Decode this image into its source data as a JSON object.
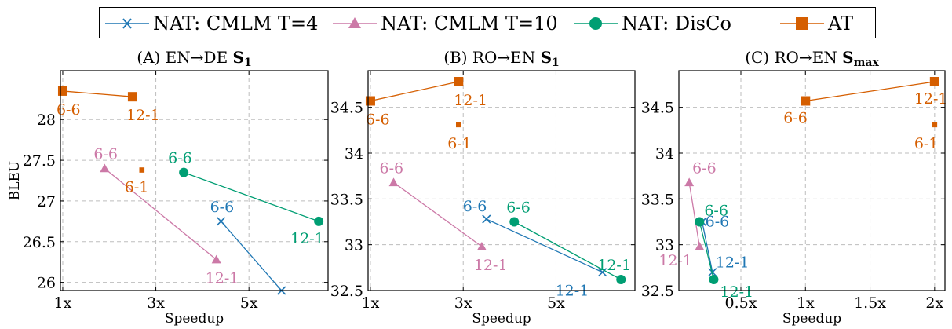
{
  "legend": {
    "items": [
      {
        "label": "NAT: CMLM T=4",
        "color": "#1f77b4",
        "marker": "x",
        "key": "cmlm4"
      },
      {
        "label": "NAT: CMLM T=10",
        "color": "#cc79a7",
        "marker": "triangle",
        "key": "cmlm10"
      },
      {
        "label": "NAT: DisCo",
        "color": "#009e73",
        "marker": "circle",
        "key": "disco"
      },
      {
        "label": "AT",
        "color": "#d55e00",
        "marker": "square",
        "key": "at"
      }
    ]
  },
  "chart_data": [
    {
      "type": "line",
      "title": "(A) EN→DE S₁",
      "title_parts": {
        "prefix": "(A) EN→DE ",
        "bold": "S",
        "sub": "1"
      },
      "xlabel": "Speedup",
      "ylabel": "BLEU",
      "xlim": [
        0.95,
        6.7
      ],
      "ylim": [
        25.9,
        28.6
      ],
      "xticks": [
        1,
        3,
        5
      ],
      "xtick_labels": [
        "1x",
        "3x",
        "5x"
      ],
      "yticks": [
        26,
        26.5,
        27,
        27.5,
        28
      ],
      "ytick_labels": [
        "26",
        "26.5",
        "27",
        "27.5",
        "28"
      ],
      "grid": true,
      "series": [
        {
          "name": "NAT: CMLM T=4",
          "key": "cmlm4",
          "x": [
            4.4,
            5.7
          ],
          "y": [
            26.75,
            25.9
          ],
          "labels": [
            "6-6",
            ""
          ]
        },
        {
          "name": "NAT: CMLM T=10",
          "key": "cmlm10",
          "x": [
            1.9,
            4.3
          ],
          "y": [
            27.4,
            26.28
          ],
          "labels": [
            "6-6",
            "12-1"
          ]
        },
        {
          "name": "NAT: DisCo",
          "key": "disco",
          "x": [
            3.6,
            6.5
          ],
          "y": [
            27.35,
            26.75
          ],
          "labels": [
            "6-6",
            "12-1"
          ]
        },
        {
          "name": "AT",
          "key": "at",
          "x": [
            1.0,
            2.5
          ],
          "y": [
            28.35,
            28.28
          ],
          "labels": [
            "6-6",
            "12-1"
          ]
        }
      ],
      "extra_points": [
        {
          "key": "at",
          "x": 2.7,
          "y": 27.38,
          "label": "6-1",
          "small": true
        }
      ]
    },
    {
      "type": "line",
      "title": "(B) RO→EN S₁",
      "title_parts": {
        "prefix": "(B) RO→EN ",
        "bold": "S",
        "sub": "1"
      },
      "xlabel": "Speedup",
      "ylabel": "",
      "xlim": [
        0.95,
        6.7
      ],
      "ylim": [
        32.5,
        34.9
      ],
      "xticks": [
        1,
        3,
        5
      ],
      "xtick_labels": [
        "1x",
        "3x",
        "5x"
      ],
      "yticks": [
        32.5,
        33,
        33.5,
        34,
        34.5
      ],
      "ytick_labels": [
        "32.5",
        "33",
        "33.5",
        "34",
        "34.5"
      ],
      "grid": true,
      "series": [
        {
          "name": "NAT: CMLM T=4",
          "key": "cmlm4",
          "x": [
            3.5,
            6.0
          ],
          "y": [
            33.28,
            32.7
          ],
          "labels": [
            "6-6",
            "12-1"
          ]
        },
        {
          "name": "NAT: CMLM T=10",
          "key": "cmlm10",
          "x": [
            1.5,
            3.4
          ],
          "y": [
            33.68,
            32.98
          ],
          "labels": [
            "6-6",
            "12-1"
          ]
        },
        {
          "name": "NAT: DisCo",
          "key": "disco",
          "x": [
            4.1,
            6.4
          ],
          "y": [
            33.25,
            32.62
          ],
          "labels": [
            "6-6",
            "12-1"
          ]
        },
        {
          "name": "AT",
          "key": "at",
          "x": [
            1.0,
            2.9
          ],
          "y": [
            34.57,
            34.78
          ],
          "labels": [
            "6-6",
            "12-1"
          ]
        }
      ],
      "extra_points": [
        {
          "key": "at",
          "x": 2.9,
          "y": 34.31,
          "label": "6-1",
          "small": true
        }
      ]
    },
    {
      "type": "line",
      "title": "(C) RO→EN Smax",
      "title_parts": {
        "prefix": "(C) RO→EN ",
        "bold": "S",
        "sub": "max"
      },
      "xlabel": "Speedup",
      "ylabel": "",
      "xlim": [
        0.02,
        2.08
      ],
      "ylim": [
        32.5,
        34.9
      ],
      "xticks": [
        0.5,
        1,
        1.5,
        2
      ],
      "xtick_labels": [
        "0.5x",
        "1x",
        "1.5x",
        "2x"
      ],
      "yticks": [
        32.5,
        33,
        33.5,
        34,
        34.5
      ],
      "ytick_labels": [
        "32.5",
        "33",
        "33.5",
        "34",
        "34.5"
      ],
      "grid": true,
      "series": [
        {
          "name": "NAT: CMLM T=4",
          "key": "cmlm4",
          "x": [
            0.2,
            0.28
          ],
          "y": [
            33.25,
            32.7
          ],
          "labels": [
            "6-6",
            "12-1"
          ]
        },
        {
          "name": "NAT: CMLM T=10",
          "key": "cmlm10",
          "x": [
            0.1,
            0.18
          ],
          "y": [
            33.68,
            32.98
          ],
          "labels": [
            "6-6",
            "12-1"
          ]
        },
        {
          "name": "NAT: DisCo",
          "key": "disco",
          "x": [
            0.18,
            0.29
          ],
          "y": [
            33.25,
            32.62
          ],
          "labels": [
            "6-6",
            "12-1"
          ]
        },
        {
          "name": "AT",
          "key": "at",
          "x": [
            1.0,
            2.0
          ],
          "y": [
            34.57,
            34.78
          ],
          "labels": [
            "6-6",
            "12-1"
          ]
        }
      ],
      "extra_points": [
        {
          "key": "at",
          "x": 2.0,
          "y": 34.31,
          "label": "6-1",
          "small": true
        }
      ]
    }
  ]
}
